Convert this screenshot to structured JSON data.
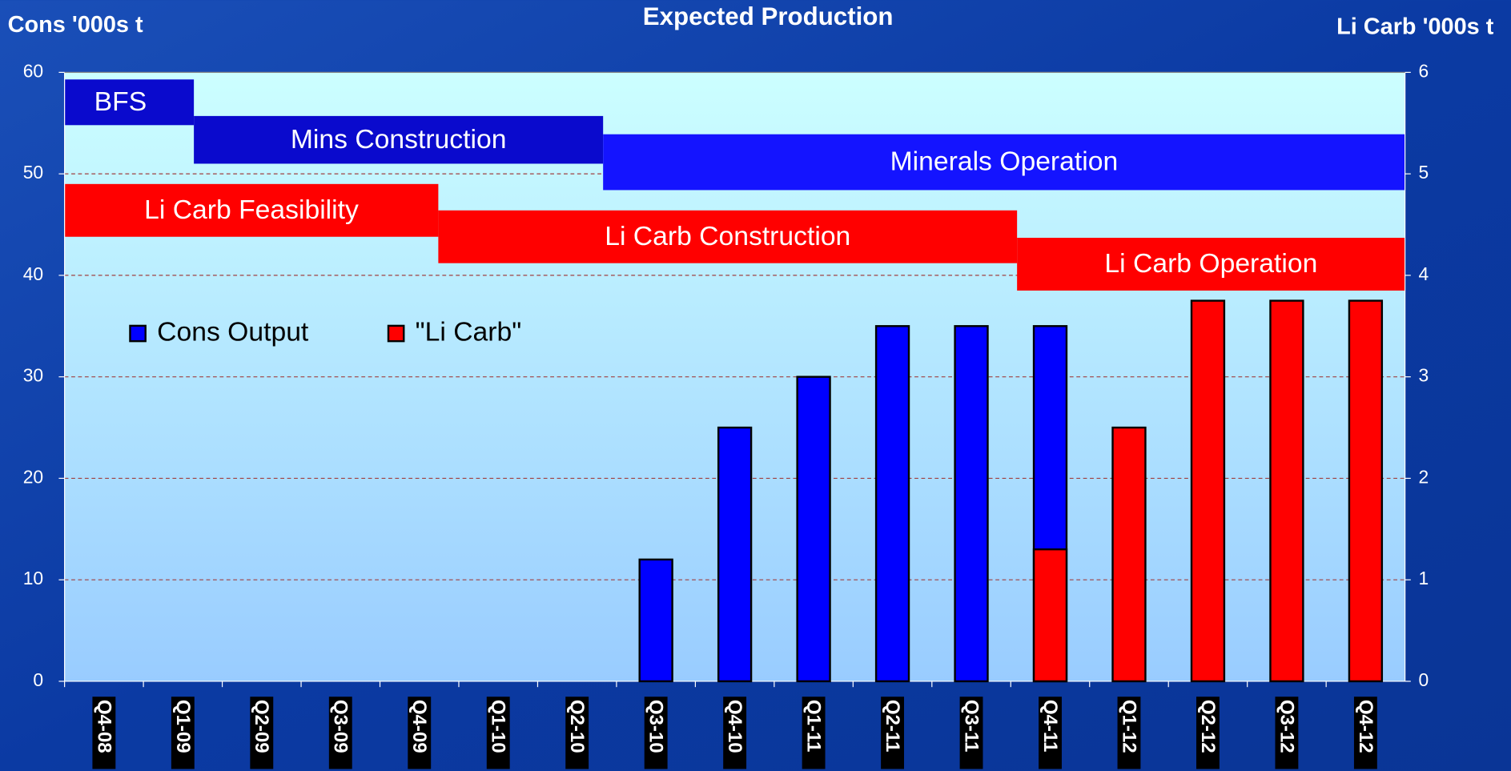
{
  "chart_data": {
    "type": "bar",
    "title": "Expected Production",
    "y_label": "Cons '000s t",
    "y2_label": "Li Carb '000s t",
    "categories": [
      "Q4-08",
      "Q1-09",
      "Q2-09",
      "Q3-09",
      "Q4-09",
      "Q1-10",
      "Q2-10",
      "Q3-10",
      "Q4-10",
      "Q1-11",
      "Q2-11",
      "Q3-11",
      "Q4-11",
      "Q1-12",
      "Q2-12",
      "Q3-12",
      "Q4-12"
    ],
    "series": [
      {
        "name": "Cons Output",
        "color": "#0000ff",
        "values": [
          null,
          null,
          null,
          null,
          null,
          null,
          null,
          12,
          25,
          30,
          35,
          35,
          35,
          null,
          null,
          null,
          null
        ]
      },
      {
        "name": "\"Li Carb\"",
        "color": "#ff0000",
        "axis": "y2",
        "values": [
          null,
          null,
          null,
          null,
          null,
          null,
          null,
          null,
          null,
          null,
          null,
          null,
          1.3,
          2.5,
          3.75,
          3.75,
          3.75
        ]
      }
    ],
    "ylim": [
      0,
      60
    ],
    "yticks": [
      0,
      10,
      20,
      30,
      40,
      50,
      60
    ],
    "y2lim": [
      0,
      6
    ],
    "y2ticks": [
      0,
      1,
      2,
      3,
      4,
      5,
      6
    ],
    "grid": true,
    "legend": "upper left",
    "phases": [
      {
        "label": "BFS",
        "color": "#0a0acd",
        "start": 0,
        "end": 1.64,
        "top": 59.3,
        "bottom": 54.8
      },
      {
        "label": "Mins Construction",
        "color": "#0a0acd",
        "start": 1.64,
        "end": 6.83,
        "top": 55.7,
        "bottom": 51.0
      },
      {
        "label": "Minerals Operation",
        "color": "#1414ff",
        "start": 6.83,
        "end": 17,
        "top": 53.9,
        "bottom": 48.4
      },
      {
        "label": "Li Carb Feasibility",
        "color": "#ff0000",
        "start": 0,
        "end": 4.74,
        "top": 49.0,
        "bottom": 43.8
      },
      {
        "label": "Li Carb Construction",
        "color": "#ff0000",
        "start": 4.74,
        "end": 12.08,
        "top": 46.4,
        "bottom": 41.2
      },
      {
        "label": "Li Carb Operation",
        "color": "#ff0000",
        "start": 12.08,
        "end": 17,
        "top": 43.7,
        "bottom": 38.5
      }
    ]
  }
}
